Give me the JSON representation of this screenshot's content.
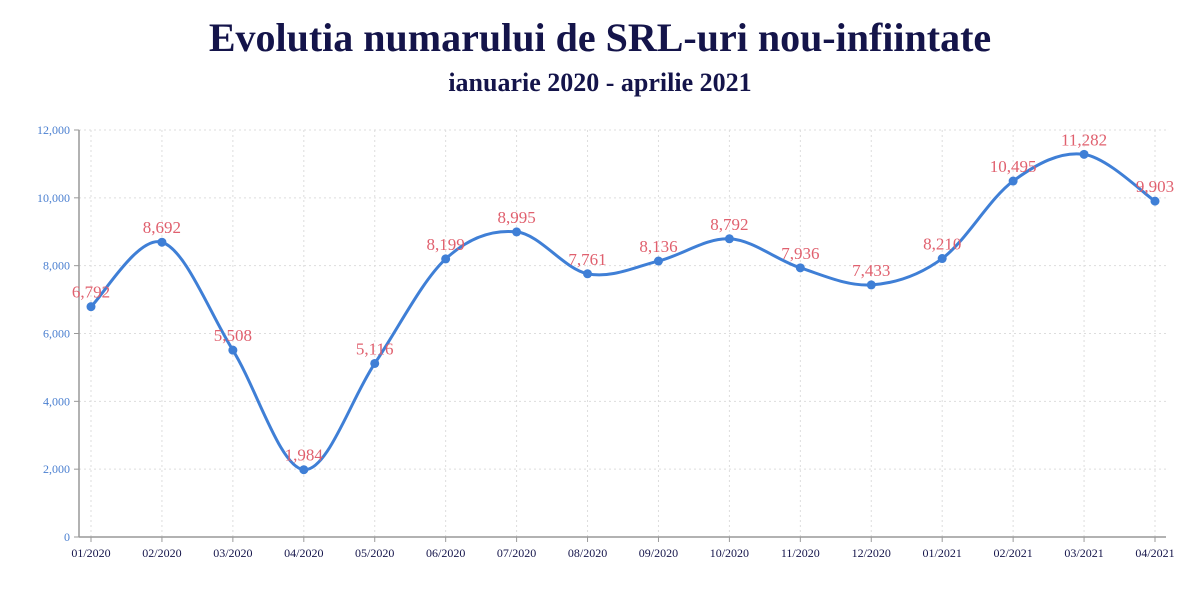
{
  "chart_data": {
    "type": "line",
    "title": "Evolutia numarului de SRL-uri nou-infiintate",
    "subtitle": "ianuarie 2020 - aprilie 2021",
    "xlabel": "",
    "ylabel": "",
    "categories": [
      "01/2020",
      "02/2020",
      "03/2020",
      "04/2020",
      "05/2020",
      "06/2020",
      "07/2020",
      "08/2020",
      "09/2020",
      "10/2020",
      "11/2020",
      "12/2020",
      "01/2021",
      "02/2021",
      "03/2021",
      "04/2021"
    ],
    "values": [
      6792,
      8692,
      5508,
      1984,
      5116,
      8199,
      8995,
      7761,
      8136,
      8792,
      7936,
      7433,
      8210,
      10495,
      11282,
      9903
    ],
    "data_labels": [
      "6,792",
      "8,692",
      "5,508",
      "1,984",
      "5,116",
      "8,199",
      "8,995",
      "7,761",
      "8,136",
      "8,792",
      "7,936",
      "7,433",
      "8,210",
      "10,495",
      "11,282",
      "9,903"
    ],
    "ylim": [
      0,
      12000
    ],
    "yticks": [
      0,
      2000,
      4000,
      6000,
      8000,
      10000,
      12000
    ],
    "ytick_labels": [
      "0",
      "2,000",
      "4,000",
      "6,000",
      "8,000",
      "10,000",
      "12,000"
    ],
    "grid": true,
    "line_color": "#3f7fd6",
    "label_color": "#e0606e"
  }
}
